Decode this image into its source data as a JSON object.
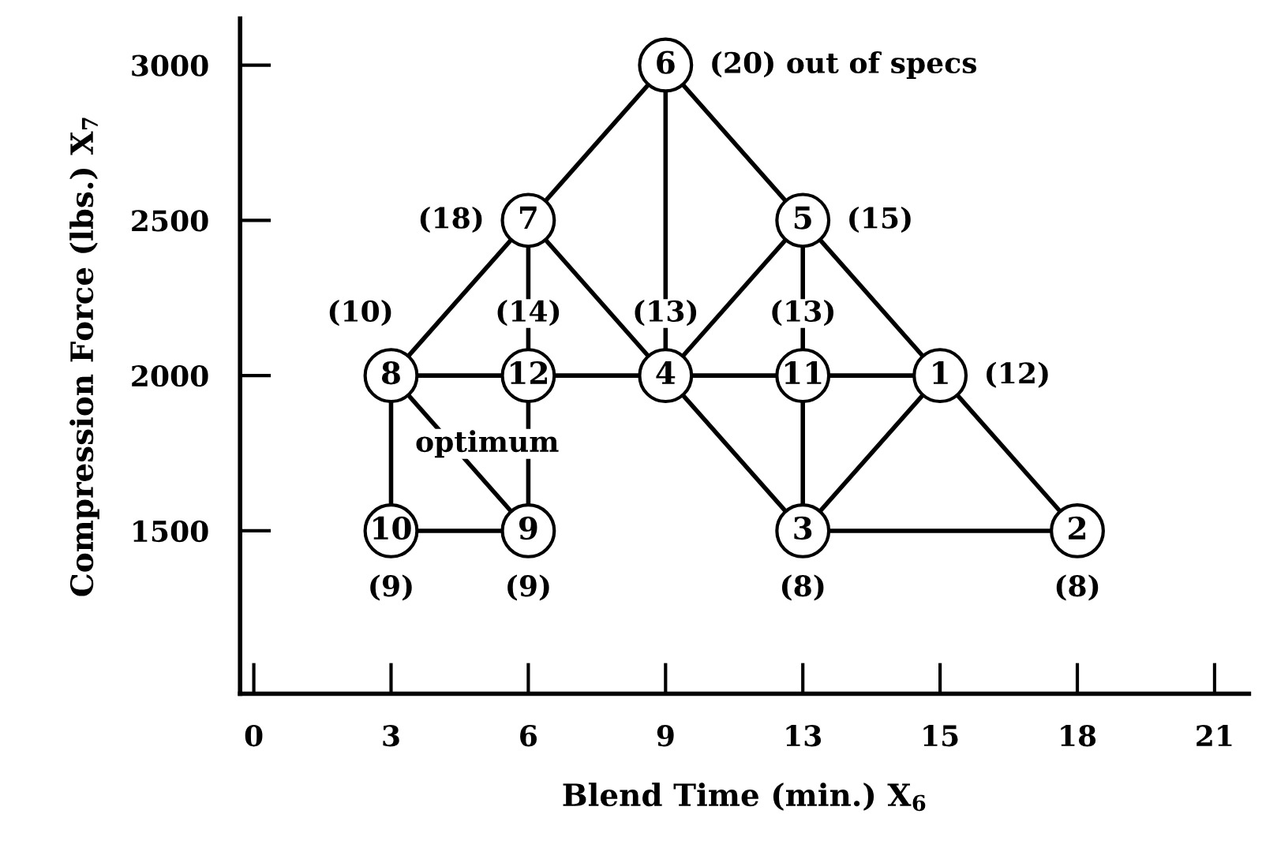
{
  "chart_data": {
    "type": "scatter",
    "xlabel": "Blend Time (min.) X$_{6}$",
    "ylabel": "Compression Force (lbs.) X$_{7}$",
    "categories": [
      "0",
      "3",
      "6",
      "9",
      "13",
      "15",
      "18",
      "21"
    ],
    "ylim": [
      975,
      3150
    ],
    "yticks": [
      1500,
      2000,
      2500,
      3000
    ],
    "grid": false,
    "legend": false,
    "series": [
      {
        "type": "line",
        "x": [
          "9",
          "6"
        ],
        "values": [
          3000,
          2500
        ],
        "color": "#000000"
      },
      {
        "type": "line",
        "x": [
          "9",
          "9"
        ],
        "values": [
          3000,
          2000
        ],
        "color": "#000000"
      },
      {
        "type": "line",
        "x": [
          "9",
          "13"
        ],
        "values": [
          3000,
          2500
        ],
        "color": "#000000"
      },
      {
        "type": "line",
        "x": [
          "6",
          "3"
        ],
        "values": [
          2500,
          2000
        ],
        "color": "#000000"
      },
      {
        "type": "line",
        "x": [
          "6",
          "6"
        ],
        "values": [
          2500,
          2000
        ],
        "color": "#000000"
      },
      {
        "type": "line",
        "x": [
          "6",
          "9"
        ],
        "values": [
          2500,
          2000
        ],
        "color": "#000000"
      },
      {
        "type": "line",
        "x": [
          "13",
          "9"
        ],
        "values": [
          2500,
          2000
        ],
        "color": "#000000"
      },
      {
        "type": "line",
        "x": [
          "13",
          "13"
        ],
        "values": [
          2500,
          1500
        ],
        "color": "#000000"
      },
      {
        "type": "line",
        "x": [
          "13",
          "15"
        ],
        "values": [
          2500,
          2000
        ],
        "color": "#000000"
      },
      {
        "type": "line",
        "x": [
          "3",
          "15"
        ],
        "values": [
          2000,
          2000
        ],
        "color": "#000000"
      },
      {
        "type": "line",
        "x": [
          "3",
          "3"
        ],
        "values": [
          2000,
          1500
        ],
        "color": "#000000"
      },
      {
        "type": "line",
        "x": [
          "3",
          "6"
        ],
        "values": [
          2000,
          1500
        ],
        "color": "#000000"
      },
      {
        "type": "line",
        "x": [
          "6",
          "6"
        ],
        "values": [
          2000,
          1500
        ],
        "color": "#000000"
      },
      {
        "type": "line",
        "x": [
          "3",
          "6"
        ],
        "values": [
          1500,
          1500
        ],
        "color": "#000000"
      },
      {
        "type": "line",
        "x": [
          "9",
          "13"
        ],
        "values": [
          2000,
          1500
        ],
        "color": "#000000"
      },
      {
        "type": "line",
        "x": [
          "15",
          "13"
        ],
        "values": [
          2000,
          1500
        ],
        "color": "#000000"
      },
      {
        "type": "line",
        "x": [
          "15",
          "18"
        ],
        "values": [
          2000,
          1500
        ],
        "color": "#000000"
      },
      {
        "type": "line",
        "x": [
          "13",
          "18"
        ],
        "values": [
          1500,
          1500
        ],
        "color": "#000000"
      },
      {
        "marker": "circle",
        "color": "#000000",
        "x": [
          "9",
          "6",
          "13",
          "3",
          "6",
          "9",
          "13",
          "15",
          "3",
          "6",
          "13",
          "18"
        ],
        "values": [
          3000,
          2500,
          2500,
          2000,
          2000,
          2000,
          2000,
          2000,
          1500,
          1500,
          1500,
          1500
        ]
      }
    ],
    "annotations": [
      {
        "text": "6",
        "x": "9",
        "y": 3000
      },
      {
        "text": "7",
        "x": "6",
        "y": 2500
      },
      {
        "text": "5",
        "x": "13",
        "y": 2500
      },
      {
        "text": "8",
        "x": "3",
        "y": 2000
      },
      {
        "text": "12",
        "x": "6",
        "y": 2000
      },
      {
        "text": "4",
        "x": "9",
        "y": 2000
      },
      {
        "text": "11",
        "x": "13",
        "y": 2000
      },
      {
        "text": "1",
        "x": "15",
        "y": 2000
      },
      {
        "text": "10",
        "x": "3",
        "y": 1500
      },
      {
        "text": "9",
        "x": "6",
        "y": 1500
      },
      {
        "text": "3",
        "x": "13",
        "y": 1500
      },
      {
        "text": "2",
        "x": "18",
        "y": 1500
      },
      {
        "text": "(20) out of specs",
        "x": "9",
        "y": 3000
      },
      {
        "text": "(18)",
        "x": "6",
        "y": 2500
      },
      {
        "text": "(15)",
        "x": "13",
        "y": 2500
      },
      {
        "text": "(10)",
        "x": "3",
        "y": 2000
      },
      {
        "text": "(14)",
        "x": "6",
        "y": 2000
      },
      {
        "text": "(13)",
        "x": "9",
        "y": 2000
      },
      {
        "text": "(13)",
        "x": "13",
        "y": 2000
      },
      {
        "text": "(12)",
        "x": "15",
        "y": 2000
      },
      {
        "text": "(9)",
        "x": "3",
        "y": 1500
      },
      {
        "text": "(9)",
        "x": "6",
        "y": 1500
      },
      {
        "text": "(8)",
        "x": "13",
        "y": 1500
      },
      {
        "text": "(8)",
        "x": "18",
        "y": 1500
      },
      "optimum"
    ]
  }
}
